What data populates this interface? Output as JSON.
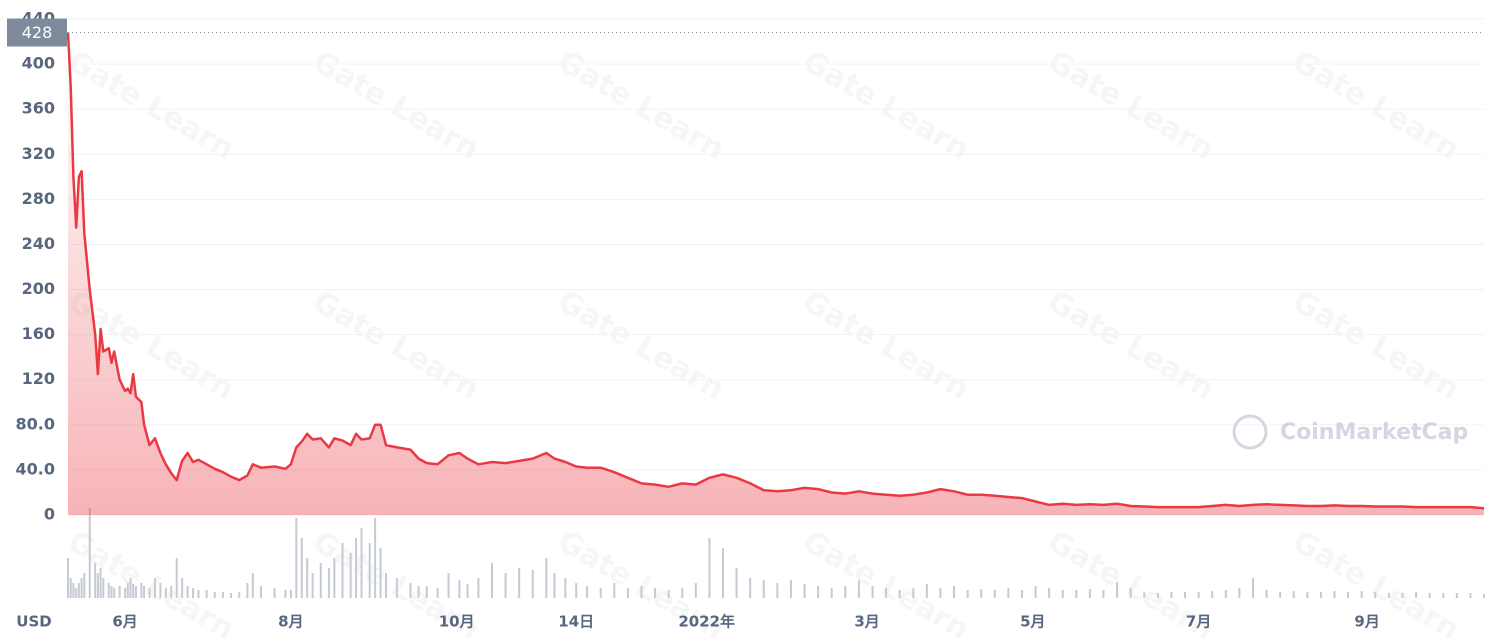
{
  "chart_data": {
    "type": "area",
    "x": [
      -21,
      -20,
      -19,
      -18,
      -17,
      -16,
      -15,
      -13,
      -11,
      -10,
      -9,
      -8,
      -6,
      -5,
      -4,
      -2,
      0,
      1,
      2,
      3,
      4,
      6,
      7,
      9,
      11,
      13,
      15,
      17,
      19,
      21,
      23,
      25,
      27,
      30,
      33,
      36,
      39,
      42,
      45,
      47,
      50,
      55,
      59,
      61,
      63,
      65,
      67,
      69,
      72,
      75,
      77,
      80,
      83,
      85,
      87,
      90,
      92,
      94,
      96,
      100,
      105,
      108,
      111,
      115,
      119,
      123,
      126,
      130,
      135,
      140,
      145,
      150,
      155,
      158,
      162,
      166,
      170,
      175,
      180,
      185,
      190,
      195,
      200,
      205,
      210,
      215,
      220,
      225,
      230,
      235,
      240,
      245,
      250,
      255,
      260,
      265,
      270,
      275,
      280,
      285,
      290,
      295,
      300,
      305,
      310,
      315,
      320,
      325,
      330,
      335,
      340,
      345,
      350,
      355,
      360,
      365,
      370,
      375,
      380,
      385,
      390,
      395,
      400,
      405,
      410,
      415,
      420,
      425,
      430,
      435,
      440,
      445,
      450,
      455,
      460,
      465,
      470,
      475,
      480,
      485,
      490,
      495,
      500
    ],
    "values": [
      428,
      380,
      300,
      255,
      300,
      305,
      250,
      200,
      160,
      125,
      165,
      145,
      148,
      135,
      145,
      120,
      110,
      112,
      108,
      125,
      105,
      100,
      80,
      62,
      68,
      55,
      45,
      37,
      31,
      48,
      55,
      47,
      49,
      45,
      41,
      38,
      34,
      31,
      35,
      45,
      42,
      43,
      41,
      45,
      60,
      65,
      72,
      67,
      68,
      60,
      68,
      66,
      62,
      72,
      67,
      68,
      80,
      80,
      62,
      60,
      58,
      50,
      46,
      45,
      53,
      55,
      50,
      45,
      47,
      46,
      48,
      50,
      55,
      50,
      47,
      43,
      42,
      42,
      38,
      33,
      28,
      27,
      25,
      28,
      27,
      33,
      36,
      33,
      28,
      22,
      21,
      22,
      24,
      23,
      20,
      19,
      21,
      19,
      18,
      17,
      18,
      20,
      23,
      21,
      18,
      18,
      17,
      16,
      15,
      12,
      9,
      10,
      9,
      9.5,
      9,
      10,
      8,
      7.5,
      7,
      7,
      7,
      7,
      8,
      9,
      8,
      9,
      9.5,
      9,
      8.5,
      8,
      8,
      8.5,
      8,
      8,
      7.5,
      7.5,
      7.5,
      7,
      7,
      7,
      7,
      7,
      6
    ],
    "color": "#ea3943",
    "volume": {
      "color": "#c5cad3",
      "values": [
        40,
        20,
        15,
        10,
        15,
        20,
        25,
        90,
        35,
        25,
        30,
        20,
        15,
        12,
        10,
        12,
        10,
        15,
        20,
        14,
        12,
        15,
        12,
        10,
        20,
        15,
        10,
        12,
        40,
        20,
        12,
        10,
        8,
        8,
        6,
        6,
        5,
        6,
        15,
        25,
        12,
        10,
        8,
        8,
        80,
        60,
        40,
        25,
        35,
        30,
        40,
        55,
        45,
        60,
        70,
        55,
        80,
        50,
        25,
        20,
        15,
        12,
        12,
        10,
        25,
        18,
        14,
        20,
        35,
        25,
        30,
        28,
        40,
        25,
        20,
        15,
        12,
        10,
        15,
        10,
        12,
        10,
        8,
        10,
        15,
        60,
        50,
        30,
        20,
        18,
        15,
        18,
        14,
        12,
        10,
        12,
        18,
        12,
        10,
        8,
        10,
        14,
        10,
        12,
        8,
        9,
        8,
        10,
        8,
        12,
        10,
        8,
        8,
        9,
        8,
        16,
        10,
        6,
        5,
        6,
        6,
        6,
        7,
        8,
        10,
        20,
        8,
        6,
        7,
        6,
        6,
        7,
        6,
        7,
        6,
        5,
        5,
        6,
        5,
        5,
        5,
        5,
        4
      ]
    },
    "xlim": [
      -21,
      500
    ],
    "xticks": [
      {
        "value": 0,
        "label": "6月"
      },
      {
        "value": 61,
        "label": "8月"
      },
      {
        "value": 122,
        "label": "10月"
      },
      {
        "value": 166,
        "label": "14日"
      },
      {
        "value": 214,
        "label": "2022年"
      },
      {
        "value": 273,
        "label": "3月"
      },
      {
        "value": 334,
        "label": "5月"
      },
      {
        "value": 395,
        "label": "7月"
      },
      {
        "value": 457,
        "label": "9月"
      }
    ],
    "ylim": [
      0,
      440
    ],
    "yticks": [
      0,
      {
        "value": 40,
        "label": "40.0"
      },
      {
        "value": 80,
        "label": "80.0"
      },
      120,
      160,
      200,
      240,
      280,
      320,
      360,
      400,
      440
    ],
    "grid": true,
    "price_marker": 428,
    "currency": "USD",
    "watermarks": [
      "Gate Learn",
      "CoinMarketCap"
    ]
  }
}
